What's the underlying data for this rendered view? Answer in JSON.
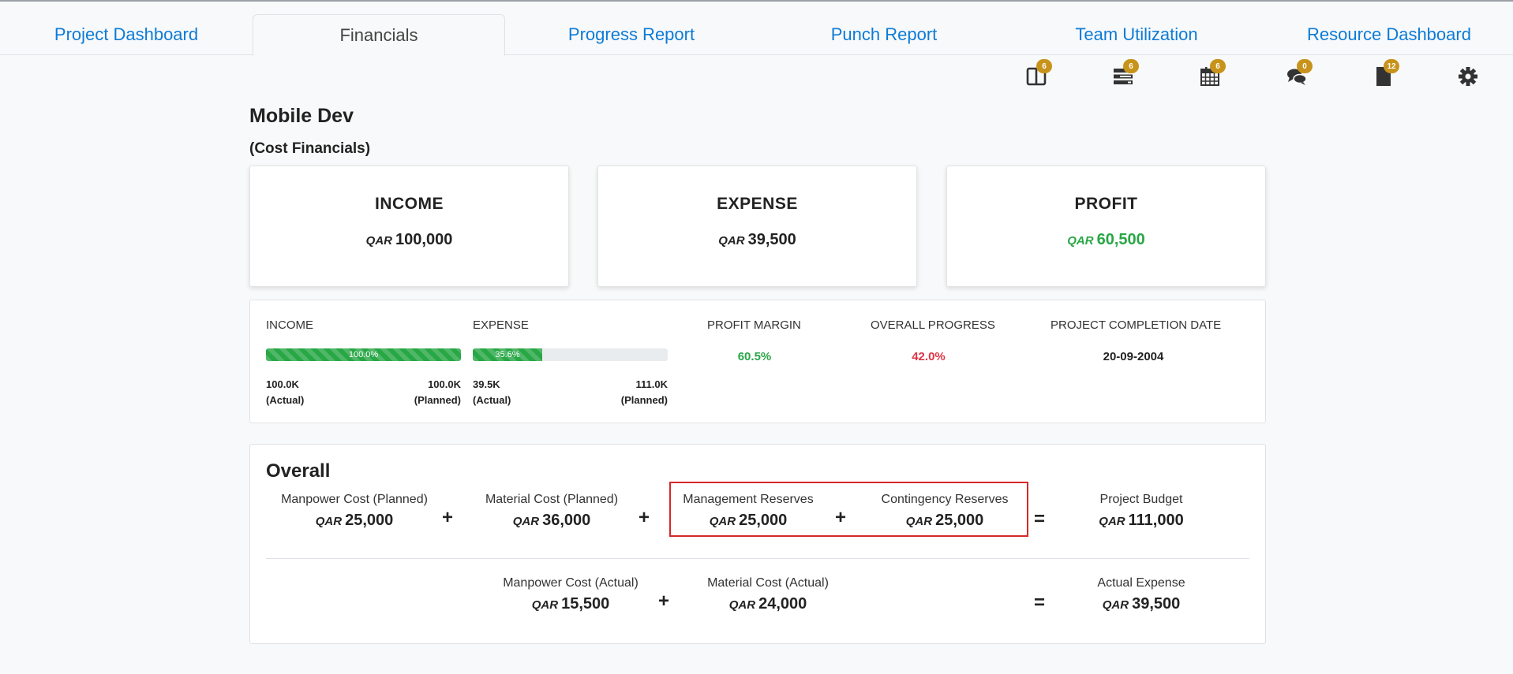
{
  "tabs": [
    "Project Dashboard",
    "Financials",
    "Progress Report",
    "Punch Report",
    "Team Utilization",
    "Resource Dashboard"
  ],
  "active_tab": "Financials",
  "toolbar": [
    {
      "icon": "columns-icon",
      "badge": "6"
    },
    {
      "icon": "tasks-icon",
      "badge": "6"
    },
    {
      "icon": "calendar-icon",
      "badge": "6"
    },
    {
      "icon": "comments-icon",
      "badge": "0"
    },
    {
      "icon": "file-icon",
      "badge": "12"
    },
    {
      "icon": "gear-icon",
      "badge": ""
    }
  ],
  "project_title": "Mobile Dev",
  "subtitle": "(Cost Financials)",
  "currency": "QAR",
  "cards": {
    "income": {
      "label": "INCOME",
      "amount": "100,000"
    },
    "expense": {
      "label": "EXPENSE",
      "amount": "39,500"
    },
    "profit": {
      "label": "PROFIT",
      "amount": "60,500"
    }
  },
  "stats": {
    "income": {
      "label": "INCOME",
      "percent_text": "100.0%",
      "fill": 100.0,
      "actual": "100.0K",
      "actual_tag": "(Actual)",
      "planned": "100.0K",
      "planned_tag": "(Planned)"
    },
    "expense": {
      "label": "EXPENSE",
      "percent_text": "35.6%",
      "fill": 35.6,
      "actual": "39.5K",
      "actual_tag": "(Actual)",
      "planned": "111.0K",
      "planned_tag": "(Planned)"
    },
    "profit_margin": {
      "label": "PROFIT MARGIN",
      "value": "60.5%"
    },
    "overall_progress": {
      "label": "OVERALL PROGRESS",
      "value": "42.0%"
    },
    "completion_date": {
      "label": "PROJECT COMPLETION DATE",
      "value": "20-09-2004"
    }
  },
  "overall": {
    "title": "Overall",
    "planned_row": [
      {
        "label": "Manpower Cost (Planned)",
        "amount": "25,000"
      },
      {
        "label": "Material Cost (Planned)",
        "amount": "36,000"
      },
      {
        "label": "Management Reserves",
        "amount": "25,000"
      },
      {
        "label": "Contingency Reserves",
        "amount": "25,000"
      },
      {
        "label": "Project Budget",
        "amount": "111,000"
      }
    ],
    "actual_row": [
      {
        "label": "Manpower Cost (Actual)",
        "amount": "15,500"
      },
      {
        "label": "Material Cost (Actual)",
        "amount": "24,000"
      },
      {
        "label": "Actual Expense",
        "amount": "39,500"
      }
    ],
    "plus": "+",
    "equals": "="
  },
  "colors": {
    "tab_link": "#0d7bd6",
    "positive": "#28a745",
    "negative": "#dc3545",
    "badge": "#c8931a",
    "highlight_border": "#d62828"
  }
}
